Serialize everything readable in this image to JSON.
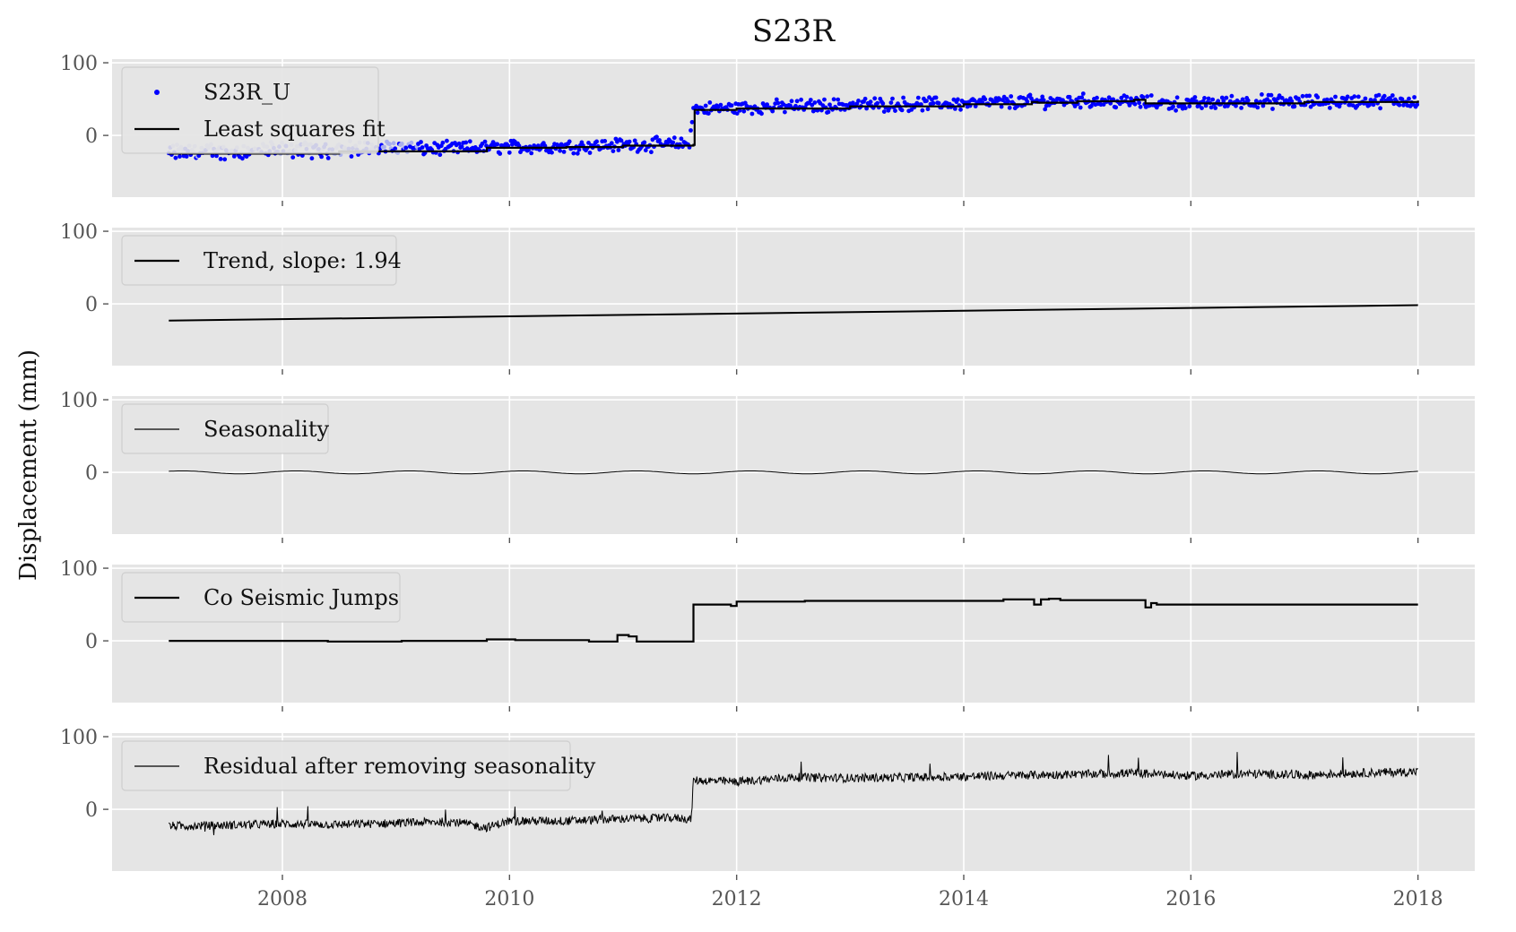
{
  "chart_data": {
    "type": "line",
    "title": "S23R",
    "ylabel": "Displacement (mm)",
    "xlim": [
      2006.5,
      2018.5
    ],
    "ylim": [
      -85,
      105
    ],
    "yticks": [
      0,
      100
    ],
    "xticks": [
      2008,
      2010,
      2012,
      2014,
      2016,
      2018
    ],
    "ytick_labels": [
      "0",
      "100"
    ],
    "xtick_labels": [
      "2008",
      "2010",
      "2012",
      "2014",
      "2016",
      "2018"
    ],
    "grid": true,
    "background": "#e5e5e5",
    "panels": [
      {
        "id": "observations",
        "legend": [
          "S23R_U",
          "Least squares fit"
        ],
        "legend_placement": "top-left",
        "series": [
          {
            "name": "S23R_U",
            "style": "markers",
            "color": "#0000ff",
            "x": [
              2007.0,
              2007.5,
              2008.0,
              2008.5,
              2009.0,
              2009.5,
              2010.0,
              2010.5,
              2011.0,
              2011.5,
              2011.58,
              2011.62,
              2012.0,
              2012.5,
              2013.0,
              2013.5,
              2014.0,
              2014.5,
              2015.0,
              2015.5,
              2016.0,
              2016.5,
              2017.0,
              2017.5,
              2018.0
            ],
            "y": [
              -25,
              -24,
              -22,
              -21,
              -19,
              -18,
              -16,
              -15,
              -13,
              -12,
              -12,
              36,
              38,
              40,
              42,
              43,
              44,
              46,
              48,
              46,
              43,
              47,
              46,
              47,
              48
            ]
          },
          {
            "name": "Least squares fit",
            "style": "step",
            "color": "#000000",
            "x": [
              2007.0,
              2008.5,
              2009.8,
              2010.5,
              2011.0,
              2011.62,
              2011.63,
              2012.0,
              2013.0,
              2014.0,
              2014.6,
              2014.65,
              2015.0,
              2015.5,
              2015.6,
              2016.0,
              2017.0,
              2018.0
            ],
            "y": [
              -25,
              -22,
              -17,
              -16,
              -14,
              -13,
              35,
              37,
              40,
              43,
              46,
              45,
              47,
              49,
              44,
              44,
              46,
              48
            ]
          }
        ]
      },
      {
        "id": "trend",
        "legend": [
          "Trend, slope: 1.94"
        ],
        "legend_placement": "top-left",
        "series": [
          {
            "name": "Trend, slope: 1.94",
            "style": "line",
            "color": "#000000",
            "x": [
              2007.0,
              2018.0
            ],
            "y": [
              -23.0,
              -1.7
            ]
          }
        ]
      },
      {
        "id": "seasonality",
        "legend": [
          "Seasonality"
        ],
        "legend_placement": "top-left",
        "series": [
          {
            "name": "Seasonality",
            "style": "sine",
            "color": "#000000",
            "amplitude": 2.0,
            "period": 1.0,
            "x_range": [
              2007.0,
              2018.0
            ]
          }
        ]
      },
      {
        "id": "jumps",
        "legend": [
          "Co Seismic Jumps"
        ],
        "legend_placement": "top-left",
        "series": [
          {
            "name": "Co Seismic Jumps",
            "style": "step",
            "color": "#000000",
            "x": [
              2007.0,
              2008.4,
              2009.05,
              2009.8,
              2010.05,
              2010.7,
              2010.95,
              2011.05,
              2011.12,
              2011.62,
              2011.95,
              2012.0,
              2012.6,
              2014.35,
              2014.62,
              2014.68,
              2014.75,
              2014.85,
              2015.55,
              2015.6,
              2015.65,
              2015.7,
              2018.0
            ],
            "y": [
              0,
              -1,
              0,
              2,
              1,
              -1,
              8,
              6,
              -1,
              50,
              48,
              54,
              55,
              57,
              50,
              57,
              58,
              56,
              56,
              46,
              52,
              50,
              50
            ]
          }
        ]
      },
      {
        "id": "residual",
        "legend": [
          "Residual after removing seasonality"
        ],
        "legend_placement": "top-left",
        "series": [
          {
            "name": "Residual after removing seasonality",
            "style": "line",
            "color": "#000000",
            "x": [
              2007.0,
              2007.5,
              2008.0,
              2008.5,
              2009.0,
              2009.5,
              2009.8,
              2010.0,
              2010.5,
              2011.0,
              2011.5,
              2011.6,
              2011.62,
              2012.0,
              2012.5,
              2013.0,
              2013.5,
              2014.0,
              2014.5,
              2015.0,
              2015.5,
              2016.0,
              2016.5,
              2017.0,
              2017.5,
              2018.0
            ],
            "y": [
              -23,
              -22,
              -20,
              -21,
              -19,
              -17,
              -25,
              -16,
              -16,
              -13,
              -12,
              -14,
              40,
              38,
              44,
              43,
              44,
              45,
              47,
              48,
              50,
              46,
              49,
              47,
              50,
              52
            ]
          }
        ]
      }
    ]
  }
}
